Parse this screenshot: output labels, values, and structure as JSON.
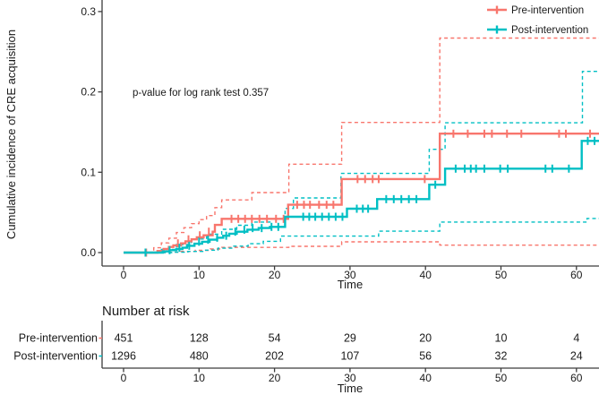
{
  "chart_data": {
    "type": "line",
    "subtype": "cumulative-incidence-step-curves-with-confidence-bands",
    "xlabel": "Time",
    "ylabel": "Cumulative incidence of CRE acquisition",
    "annotation": "p-value for log rank test 0.357",
    "xlim": [
      0,
      63
    ],
    "ylim": [
      0,
      0.3
    ],
    "x_ticks": [
      0,
      10,
      20,
      30,
      40,
      50,
      60
    ],
    "y_ticks": [
      "0.0",
      "0.1",
      "0.2",
      "0.3"
    ],
    "grid": "off",
    "legend_position": "top-right",
    "series": [
      {
        "name": "Pre-intervention",
        "color": "#F8766D",
        "steps": [
          [
            0,
            0
          ],
          [
            4.5,
            0.002
          ],
          [
            5.3,
            0.0045
          ],
          [
            6,
            0.007
          ],
          [
            6.6,
            0.009
          ],
          [
            7.6,
            0.0115
          ],
          [
            8.2,
            0.014
          ],
          [
            9,
            0.0165
          ],
          [
            9.7,
            0.019
          ],
          [
            10.6,
            0.0215
          ],
          [
            11.8,
            0.026
          ],
          [
            12.1,
            0.0345
          ],
          [
            13,
            0.042
          ],
          [
            21.8,
            0.0595
          ],
          [
            28.9,
            0.0915
          ],
          [
            41.9,
            0.148
          ]
        ],
        "upper_ci": [
          [
            0,
            0
          ],
          [
            4,
            0.006
          ],
          [
            5,
            0.012
          ],
          [
            6,
            0.018
          ],
          [
            7,
            0.025
          ],
          [
            8,
            0.031
          ],
          [
            9,
            0.036
          ],
          [
            10,
            0.041
          ],
          [
            11,
            0.046
          ],
          [
            12.1,
            0.056
          ],
          [
            13,
            0.0655
          ],
          [
            17,
            0.0747
          ],
          [
            21.9,
            0.11
          ],
          [
            28.9,
            0.162
          ],
          [
            41.9,
            0.267
          ]
        ],
        "lower_ci": [
          [
            0,
            0
          ],
          [
            5.5,
            0.0005
          ],
          [
            7.5,
            0.0015
          ],
          [
            9.5,
            0.0028
          ],
          [
            11.5,
            0.0045
          ],
          [
            13,
            0.0065
          ],
          [
            21.9,
            0.0078
          ],
          [
            28.9,
            0.0134
          ],
          [
            41.9,
            0.0092
          ]
        ],
        "censor_marks": [
          [
            3,
            0
          ],
          [
            7.2,
            0.0115
          ],
          [
            8.6,
            0.0165
          ],
          [
            10.1,
            0.0215
          ],
          [
            11.3,
            0.026
          ],
          [
            14.3,
            0.042
          ],
          [
            15.2,
            0.042
          ],
          [
            16.1,
            0.042
          ],
          [
            17,
            0.042
          ],
          [
            18,
            0.042
          ],
          [
            19,
            0.042
          ],
          [
            20.2,
            0.042
          ],
          [
            21.2,
            0.042
          ],
          [
            23,
            0.0595
          ],
          [
            23.9,
            0.0595
          ],
          [
            24.7,
            0.0595
          ],
          [
            25.9,
            0.0595
          ],
          [
            26.9,
            0.0595
          ],
          [
            27.8,
            0.0595
          ],
          [
            31,
            0.0915
          ],
          [
            32,
            0.0915
          ],
          [
            33,
            0.0915
          ],
          [
            33.8,
            0.0915
          ],
          [
            39.9,
            0.0915
          ],
          [
            43.7,
            0.148
          ],
          [
            45.6,
            0.148
          ],
          [
            47.8,
            0.148
          ],
          [
            48.8,
            0.148
          ],
          [
            50.8,
            0.148
          ],
          [
            52.7,
            0.148
          ],
          [
            57.7,
            0.148
          ],
          [
            58.6,
            0.148
          ],
          [
            61.8,
            0.148
          ]
        ]
      },
      {
        "name": "Post-intervention",
        "color": "#00BFC4",
        "steps": [
          [
            0,
            0
          ],
          [
            5.2,
            0.0015
          ],
          [
            6.1,
            0.003
          ],
          [
            7,
            0.0045
          ],
          [
            7.8,
            0.006
          ],
          [
            8.4,
            0.0085
          ],
          [
            9.4,
            0.011
          ],
          [
            10.4,
            0.0135
          ],
          [
            11.4,
            0.016
          ],
          [
            12.4,
            0.0185
          ],
          [
            13.2,
            0.021
          ],
          [
            14,
            0.0235
          ],
          [
            15,
            0.026
          ],
          [
            16.4,
            0.0285
          ],
          [
            17.9,
            0.0305
          ],
          [
            19.4,
            0.032
          ],
          [
            21.4,
            0.0446
          ],
          [
            29.6,
            0.0546
          ],
          [
            33.6,
            0.0665
          ],
          [
            40.5,
            0.0845
          ],
          [
            42.6,
            0.1045
          ],
          [
            60.7,
            0.139
          ]
        ],
        "upper_ci": [
          [
            0,
            0
          ],
          [
            5,
            0.004
          ],
          [
            7,
            0.01
          ],
          [
            9,
            0.017
          ],
          [
            11,
            0.023
          ],
          [
            13,
            0.029
          ],
          [
            15,
            0.034
          ],
          [
            17,
            0.038
          ],
          [
            19.4,
            0.042
          ],
          [
            21.4,
            0.055
          ],
          [
            22.5,
            0.068
          ],
          [
            28.8,
            0.0985
          ],
          [
            40.5,
            0.1285
          ],
          [
            42.6,
            0.1615
          ],
          [
            60.8,
            0.2255
          ]
        ],
        "lower_ci": [
          [
            0,
            0
          ],
          [
            6.5,
            0.0005
          ],
          [
            8.5,
            0.0015
          ],
          [
            10.5,
            0.003
          ],
          [
            12.5,
            0.0055
          ],
          [
            14.5,
            0.008
          ],
          [
            16.5,
            0.011
          ],
          [
            18.5,
            0.014
          ],
          [
            20.8,
            0.0205
          ],
          [
            33.8,
            0.0267
          ],
          [
            41.9,
            0.038
          ],
          [
            61.4,
            0.0425
          ]
        ],
        "censor_marks": [
          [
            2.9,
            0
          ],
          [
            6.1,
            0.003
          ],
          [
            7.4,
            0.006
          ],
          [
            8.7,
            0.0085
          ],
          [
            10,
            0.0135
          ],
          [
            11.2,
            0.016
          ],
          [
            12.4,
            0.0185
          ],
          [
            13.6,
            0.021
          ],
          [
            14.8,
            0.026
          ],
          [
            16,
            0.0285
          ],
          [
            17.1,
            0.0305
          ],
          [
            18.3,
            0.0305
          ],
          [
            19.6,
            0.032
          ],
          [
            20.5,
            0.032
          ],
          [
            23.8,
            0.0446
          ],
          [
            24.6,
            0.0446
          ],
          [
            25.4,
            0.0446
          ],
          [
            26.3,
            0.0446
          ],
          [
            27.2,
            0.0446
          ],
          [
            28.1,
            0.0446
          ],
          [
            29,
            0.0446
          ],
          [
            30.9,
            0.0546
          ],
          [
            31.7,
            0.0546
          ],
          [
            32.4,
            0.0546
          ],
          [
            34.8,
            0.0665
          ],
          [
            35.8,
            0.0665
          ],
          [
            36.8,
            0.0665
          ],
          [
            37.8,
            0.0665
          ],
          [
            38.8,
            0.0665
          ],
          [
            41.3,
            0.0845
          ],
          [
            44,
            0.1045
          ],
          [
            45.2,
            0.1045
          ],
          [
            46,
            0.1045
          ],
          [
            46.7,
            0.1045
          ],
          [
            47.8,
            0.1045
          ],
          [
            49.9,
            0.1045
          ],
          [
            50.9,
            0.1045
          ],
          [
            55.9,
            0.1045
          ],
          [
            56.8,
            0.1045
          ],
          [
            59,
            0.1045
          ],
          [
            61.5,
            0.139
          ],
          [
            62.4,
            0.139
          ]
        ]
      }
    ],
    "risk_table": {
      "title": "Number at risk",
      "xlabel": "Time",
      "times": [
        0,
        10,
        20,
        30,
        40,
        50,
        60
      ],
      "rows": [
        {
          "label": "Pre-intervention",
          "color": "#F8766D",
          "values": [
            451,
            128,
            54,
            29,
            20,
            10,
            4
          ]
        },
        {
          "label": "Post-intervention",
          "color": "#00BFC4",
          "values": [
            1296,
            480,
            202,
            107,
            56,
            32,
            24
          ]
        }
      ]
    }
  },
  "style": {
    "axis_color": "#3c3c3c",
    "text_color": "#1a1a1a"
  }
}
